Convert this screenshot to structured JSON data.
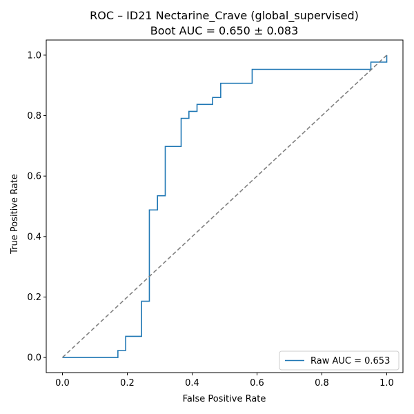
{
  "chart_data": {
    "type": "line",
    "title": "ROC – ID21 Nectarine_Crave (global_supervised)",
    "subtitle": "Boot AUC = 0.650 ± 0.083",
    "xlabel": "False Positive Rate",
    "ylabel": "True Positive Rate",
    "xlim": [
      -0.05,
      1.05
    ],
    "ylim": [
      -0.05,
      1.05
    ],
    "xticks": [
      "0.0",
      "0.2",
      "0.4",
      "0.6",
      "0.8",
      "1.0"
    ],
    "yticks": [
      "0.0",
      "0.2",
      "0.4",
      "0.6",
      "0.8",
      "1.0"
    ],
    "grid": false,
    "legend_position": "lower-right",
    "series": [
      {
        "name": "Raw AUC = 0.653",
        "color": "#1f77b4",
        "style": "step",
        "x": [
          0.0,
          0.171,
          0.171,
          0.195,
          0.195,
          0.244,
          0.244,
          0.268,
          0.268,
          0.293,
          0.293,
          0.317,
          0.317,
          0.366,
          0.366,
          0.39,
          0.39,
          0.415,
          0.415,
          0.463,
          0.463,
          0.488,
          0.488,
          0.585,
          0.585,
          0.951,
          0.951,
          1.0,
          1.0
        ],
        "y": [
          0.0,
          0.0,
          0.023,
          0.023,
          0.07,
          0.07,
          0.186,
          0.186,
          0.488,
          0.488,
          0.535,
          0.535,
          0.698,
          0.698,
          0.791,
          0.791,
          0.814,
          0.814,
          0.837,
          0.837,
          0.86,
          0.86,
          0.907,
          0.907,
          0.953,
          0.953,
          0.977,
          0.977,
          1.0
        ]
      },
      {
        "name": "",
        "color": "#808080",
        "style": "dashed",
        "x": [
          0,
          1
        ],
        "y": [
          0,
          1
        ]
      }
    ]
  }
}
